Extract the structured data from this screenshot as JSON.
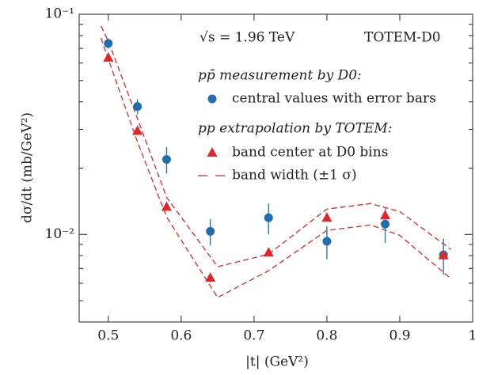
{
  "chart_data": {
    "type": "scatter",
    "xlabel": "|t|   (GeV²)",
    "ylabel": "dσ/dt   (mb/GeV²)",
    "xlim": [
      0.46,
      1.0
    ],
    "xticks": [
      0.5,
      0.6,
      0.7,
      0.8,
      0.9,
      1
    ],
    "ylim": [
      0.004,
      0.1
    ],
    "log_y": true,
    "yticks": [
      {
        "value": 0.1,
        "label": "10⁻¹"
      },
      {
        "value": 0.01,
        "label": "10⁻²"
      }
    ],
    "minor_yticks": [
      0.005,
      0.006,
      0.007,
      0.008,
      0.009,
      0.02,
      0.03,
      0.04,
      0.05,
      0.06,
      0.07,
      0.08,
      0.09
    ],
    "annotations": [
      "√s = 1.96 TeV",
      "TOTEM-D0"
    ],
    "legend_groups": [
      "pp̄ measurement by D0:",
      "pp extrapolation by TOTEM:"
    ],
    "series": [
      {
        "name": "central values with error bars",
        "color": "#1f6fb0",
        "marker": "circle",
        "x": [
          0.5,
          0.54,
          0.58,
          0.64,
          0.72,
          0.8,
          0.88,
          0.96
        ],
        "values": [
          0.0737,
          0.0381,
          0.0219,
          0.01033,
          0.0119,
          0.0093,
          0.01114,
          0.00807
        ],
        "errors": [
          0.004,
          0.003,
          0.003,
          0.0014,
          0.0019,
          0.0016,
          0.002,
          0.0015
        ]
      },
      {
        "name": "band center at D0 bins",
        "color": "#e0252b",
        "marker": "triangle",
        "x": [
          0.5,
          0.54,
          0.58,
          0.64,
          0.72,
          0.8,
          0.88,
          0.96
        ],
        "values": [
          0.0635,
          0.0295,
          0.01334,
          0.00635,
          0.00827,
          0.0119,
          0.0122,
          0.00803
        ]
      }
    ],
    "band": {
      "name": "band width (±1 σ)",
      "color": "#e0252b",
      "x": [
        0.49,
        0.5,
        0.54,
        0.58,
        0.65,
        0.72,
        0.8,
        0.86,
        0.9,
        0.97
      ],
      "upper": [
        0.0884,
        0.0755,
        0.0336,
        0.01473,
        0.00713,
        0.00813,
        0.01303,
        0.0138,
        0.0127,
        0.00855
      ],
      "lower": [
        0.0781,
        0.0625,
        0.0263,
        0.012,
        0.00517,
        0.00684,
        0.01042,
        0.01104,
        0.0099,
        0.0063
      ]
    }
  }
}
